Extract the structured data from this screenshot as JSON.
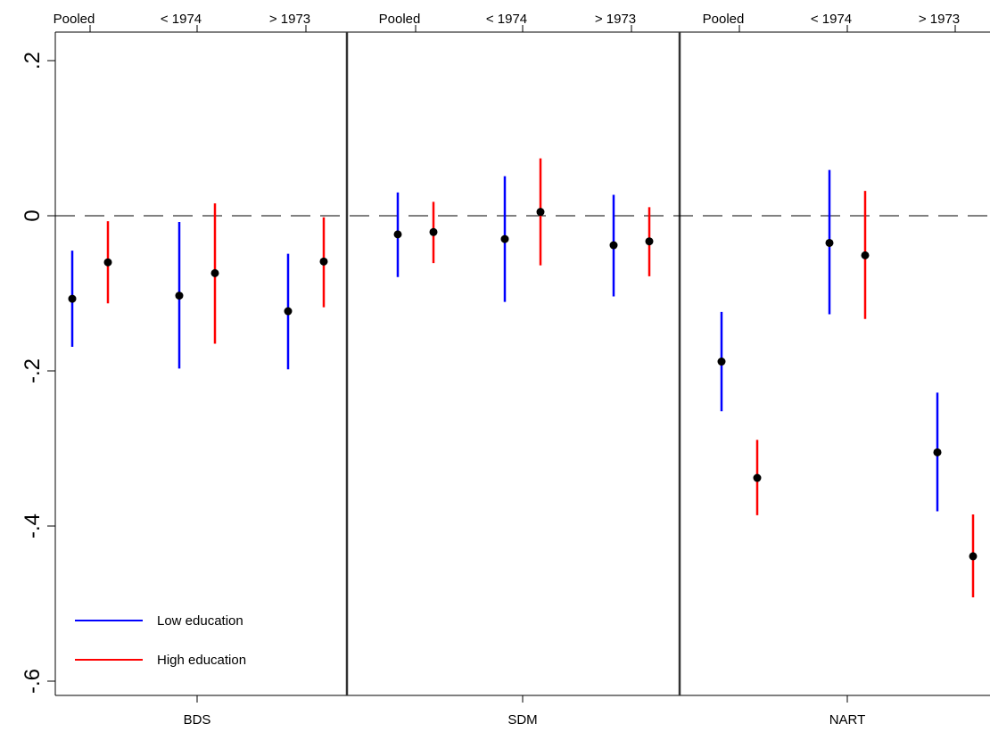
{
  "chart_data": {
    "type": "scatter",
    "subtype": "point-with-confidence-interval",
    "title": "",
    "ylim": [
      -0.62,
      0.22
    ],
    "y_ticks": [
      {
        "value": 0.2,
        "label": ".2"
      },
      {
        "value": 0,
        "label": "0"
      },
      {
        "value": -0.2,
        "label": "-.2"
      },
      {
        "value": -0.4,
        "label": "-.4"
      },
      {
        "value": -0.6,
        "label": "-.6"
      }
    ],
    "reference_line": {
      "value": 0,
      "style": "dashed"
    },
    "top_tick_labels": [
      "Pooled",
      "< 1974",
      "> 1973",
      "Pooled",
      "< 1974",
      "> 1973",
      "Pooled",
      "< 1974",
      "> 1973"
    ],
    "series": [
      {
        "name": "Low education",
        "color": "#0000ff"
      },
      {
        "name": "High education",
        "color": "#ff0000"
      }
    ],
    "legend": {
      "placement": "bottom-left"
    },
    "panels": [
      {
        "label": "BDS",
        "groups": [
          {
            "label": "Pooled",
            "points": [
              {
                "series": "Low education",
                "estimate": -0.107,
                "ci": [
                  -0.169,
                  -0.045
                ]
              },
              {
                "series": "High education",
                "estimate": -0.06,
                "ci": [
                  -0.113,
                  -0.007
                ]
              }
            ]
          },
          {
            "label": "< 1974",
            "points": [
              {
                "series": "Low education",
                "estimate": -0.103,
                "ci": [
                  -0.197,
                  -0.008
                ]
              },
              {
                "series": "High education",
                "estimate": -0.074,
                "ci": [
                  -0.165,
                  0.016
                ]
              }
            ]
          },
          {
            "label": "> 1973",
            "points": [
              {
                "series": "Low education",
                "estimate": -0.123,
                "ci": [
                  -0.198,
                  -0.049
                ]
              },
              {
                "series": "High education",
                "estimate": -0.059,
                "ci": [
                  -0.118,
                  -0.002
                ]
              }
            ]
          }
        ]
      },
      {
        "label": "SDM",
        "groups": [
          {
            "label": "Pooled",
            "points": [
              {
                "series": "Low education",
                "estimate": -0.024,
                "ci": [
                  -0.079,
                  0.03
                ]
              },
              {
                "series": "High education",
                "estimate": -0.021,
                "ci": [
                  -0.061,
                  0.018
                ]
              }
            ]
          },
          {
            "label": "< 1974",
            "points": [
              {
                "series": "Low education",
                "estimate": -0.03,
                "ci": [
                  -0.111,
                  0.051
                ]
              },
              {
                "series": "High education",
                "estimate": 0.005,
                "ci": [
                  -0.064,
                  0.074
                ]
              }
            ]
          },
          {
            "label": "> 1973",
            "points": [
              {
                "series": "Low education",
                "estimate": -0.038,
                "ci": [
                  -0.104,
                  0.027
                ]
              },
              {
                "series": "High education",
                "estimate": -0.033,
                "ci": [
                  -0.078,
                  0.011
                ]
              }
            ]
          }
        ]
      },
      {
        "label": "NART",
        "groups": [
          {
            "label": "Pooled",
            "points": [
              {
                "series": "Low education",
                "estimate": -0.188,
                "ci": [
                  -0.252,
                  -0.124
                ]
              },
              {
                "series": "High education",
                "estimate": -0.338,
                "ci": [
                  -0.386,
                  -0.289
                ]
              }
            ]
          },
          {
            "label": "< 1974",
            "points": [
              {
                "series": "Low education",
                "estimate": -0.035,
                "ci": [
                  -0.127,
                  0.059
                ]
              },
              {
                "series": "High education",
                "estimate": -0.051,
                "ci": [
                  -0.133,
                  0.032
                ]
              }
            ]
          },
          {
            "label": "> 1973",
            "points": [
              {
                "series": "Low education",
                "estimate": -0.305,
                "ci": [
                  -0.381,
                  -0.228
                ]
              },
              {
                "series": "High education",
                "estimate": -0.439,
                "ci": [
                  -0.492,
                  -0.385
                ]
              }
            ]
          }
        ]
      }
    ]
  }
}
